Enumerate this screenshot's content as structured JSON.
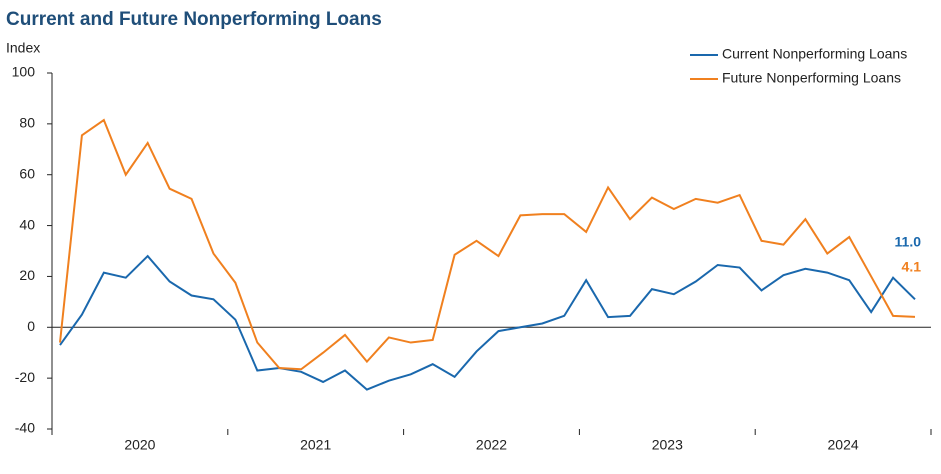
{
  "chart_data": {
    "type": "line",
    "title": "Current and Future Nonperforming Loans",
    "y_label": "Index",
    "categories": [
      null,
      null,
      null,
      null,
      "2020",
      null,
      null,
      null,
      null,
      null,
      null,
      null,
      "2021",
      null,
      null,
      null,
      null,
      null,
      null,
      null,
      "2022",
      null,
      null,
      null,
      null,
      null,
      null,
      null,
      "2023",
      null,
      null,
      null,
      null,
      null,
      null,
      null,
      "2024",
      null,
      null,
      null
    ],
    "series": [
      {
        "name": "Current Nonperforming Loans",
        "color": "#1a68ad",
        "values": [
          -7,
          5,
          21.5,
          19.5,
          28,
          18,
          12.5,
          11,
          3,
          -17,
          -16,
          -17.5,
          -21.5,
          -17,
          -24.5,
          -21,
          -18.5,
          -14.5,
          -19.5,
          -9.5,
          -1.5,
          0,
          1.5,
          4.5,
          18.5,
          4,
          4.5,
          15,
          13,
          18,
          24.5,
          23.5,
          14.5,
          20.5,
          23,
          21.5,
          18.5,
          6,
          19.5,
          11
        ],
        "value_labels": [
          null,
          null,
          null,
          null,
          null,
          null,
          null,
          null,
          null,
          null,
          null,
          null,
          null,
          null,
          null,
          null,
          null,
          null,
          null,
          null,
          null,
          null,
          null,
          null,
          null,
          null,
          null,
          null,
          null,
          null,
          null,
          null,
          null,
          null,
          null,
          null,
          null,
          null,
          null,
          "11.0"
        ]
      },
      {
        "name": "Future Nonperforming Loans",
        "color": "#f0801f",
        "values": [
          -6,
          75.5,
          81.5,
          60,
          72.5,
          54.5,
          50.5,
          29,
          17.5,
          -6,
          -16,
          -16.5,
          -10,
          -3,
          -13.5,
          -4,
          -6,
          -5,
          28.5,
          34,
          28,
          44,
          44.5,
          44.5,
          37.5,
          55,
          42.5,
          51,
          46.5,
          50.5,
          49,
          52,
          34,
          32.5,
          42.5,
          29,
          35.5,
          20,
          4.5,
          4.1
        ],
        "value_labels": [
          null,
          null,
          null,
          null,
          null,
          null,
          null,
          null,
          null,
          null,
          null,
          null,
          null,
          null,
          null,
          null,
          null,
          null,
          null,
          null,
          null,
          null,
          null,
          null,
          null,
          null,
          null,
          null,
          null,
          null,
          null,
          null,
          null,
          null,
          null,
          null,
          null,
          null,
          null,
          "4.1"
        ]
      }
    ],
    "ylim": [
      -40,
      100
    ],
    "yticks": [
      -40,
      -20,
      0,
      20,
      40,
      60,
      80,
      100
    ],
    "legend": "upper right"
  }
}
